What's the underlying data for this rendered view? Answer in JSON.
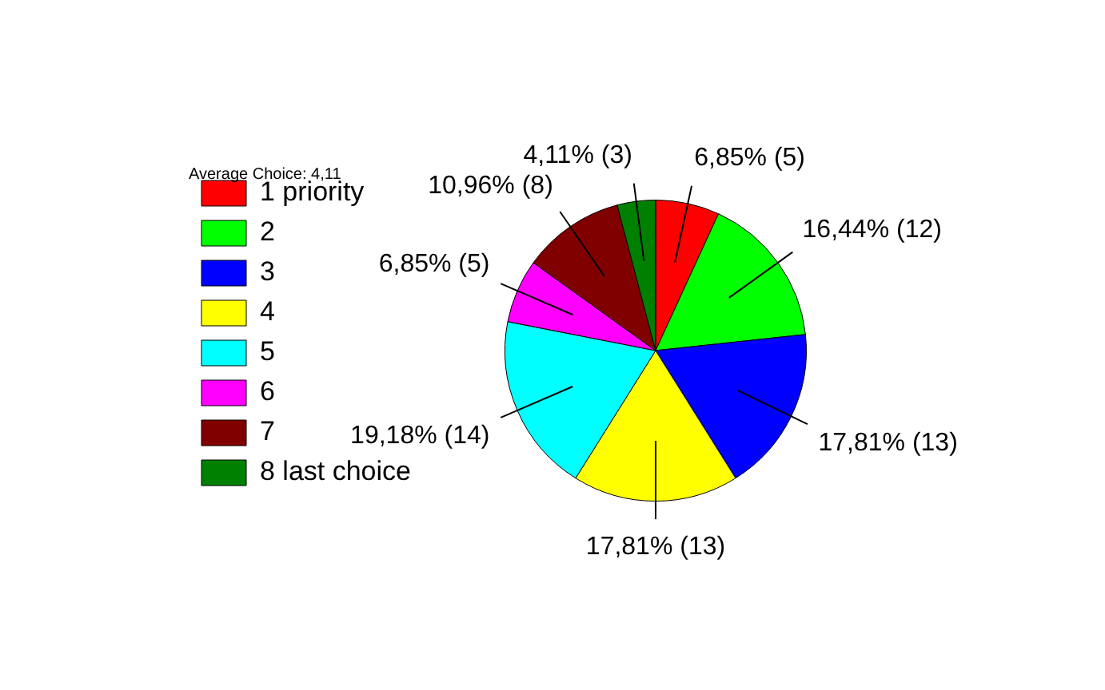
{
  "chart_data": {
    "type": "pie",
    "title": "Average Choice: 4,11",
    "categories": [
      "1 priority",
      "2",
      "3",
      "4",
      "5",
      "6",
      "7",
      "8 last choice"
    ],
    "values": [
      5,
      12,
      13,
      13,
      14,
      5,
      8,
      3
    ],
    "colors": [
      "#ff0000",
      "#00ff00",
      "#0000ff",
      "#ffff00",
      "#00ffff",
      "#ff00ff",
      "#800000",
      "#008000"
    ],
    "value_labels": [
      "6,85% (5)",
      "16,44% (12)",
      "17,81% (13)",
      "17,81% (13)",
      "19,18% (14)",
      "6,85% (5)",
      "10,96% (8)",
      "4,11% (3)"
    ],
    "legend": "left"
  }
}
